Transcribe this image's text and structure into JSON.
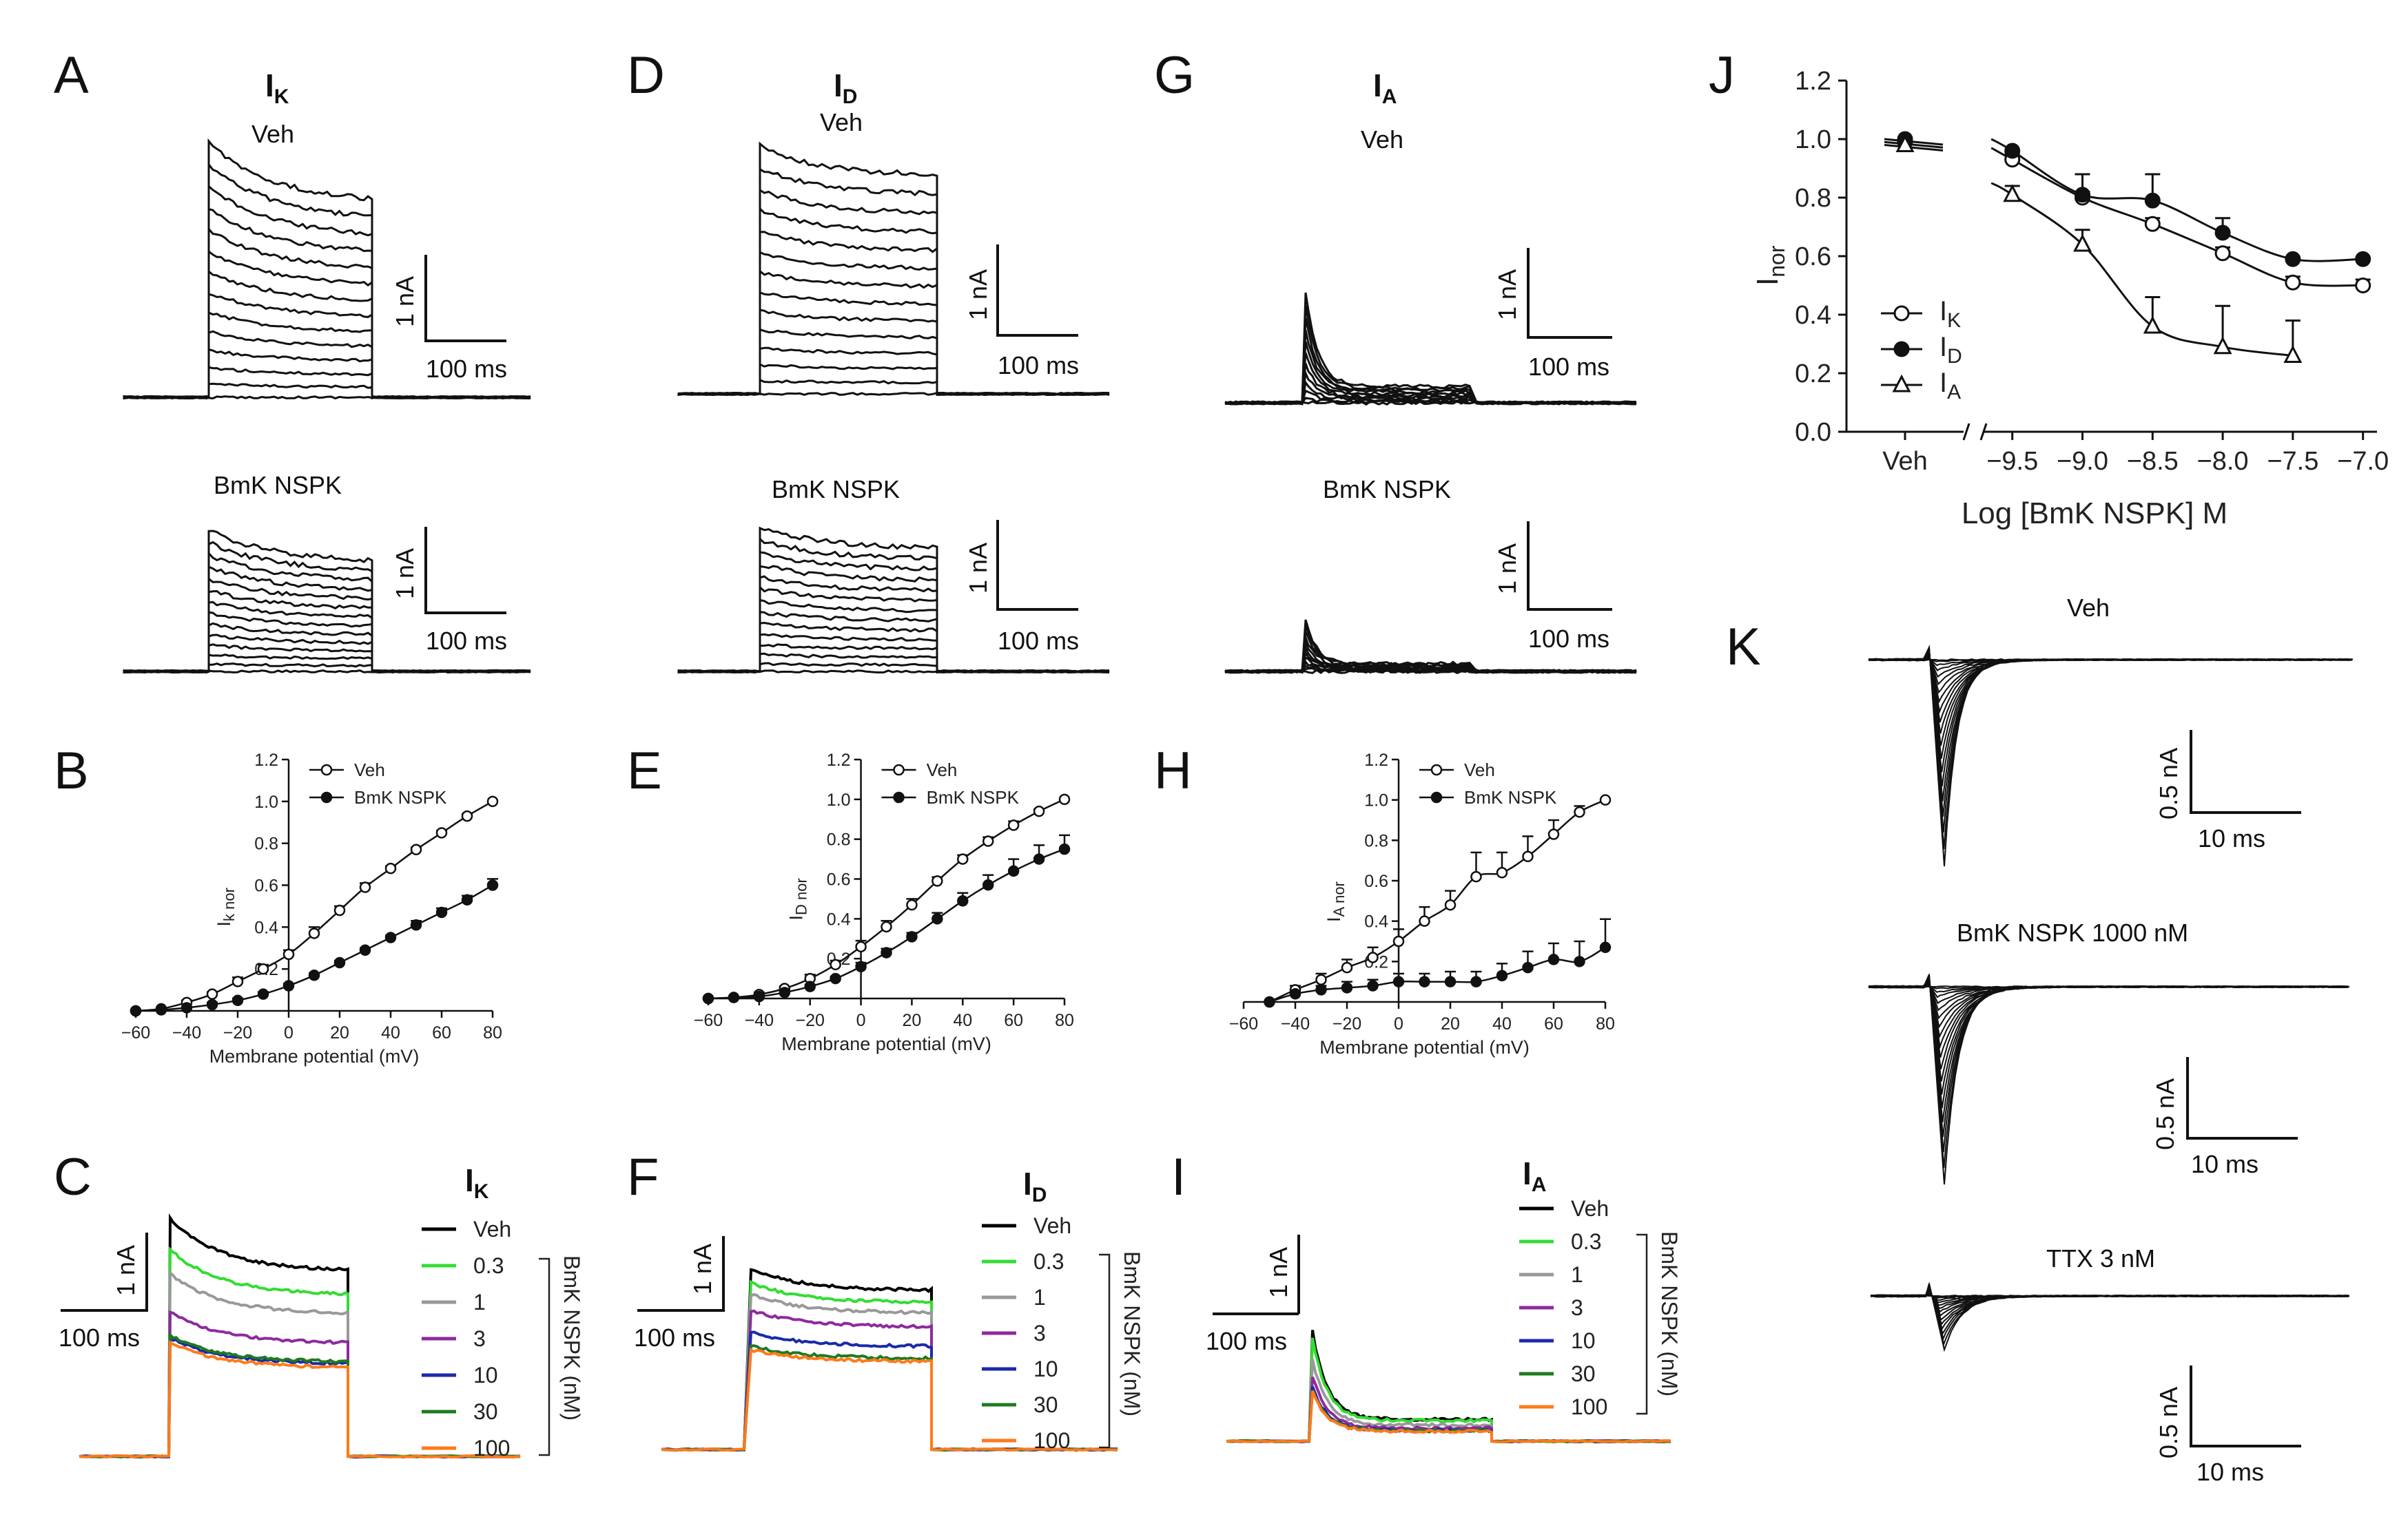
{
  "panels": [
    {
      "id": "A",
      "label": "A"
    },
    {
      "id": "B",
      "label": "B"
    },
    {
      "id": "C",
      "label": "C"
    },
    {
      "id": "D",
      "label": "D"
    },
    {
      "id": "E",
      "label": "E"
    },
    {
      "id": "F",
      "label": "F"
    },
    {
      "id": "G",
      "label": "G"
    },
    {
      "id": "H",
      "label": "H"
    },
    {
      "id": "I",
      "label": "I"
    },
    {
      "id": "J",
      "label": "J"
    },
    {
      "id": "K",
      "label": "K"
    }
  ],
  "titles": {
    "IK": {
      "main": "I",
      "sub": "K"
    },
    "ID": {
      "main": "I",
      "sub": "D"
    },
    "IA": {
      "main": "I",
      "sub": "A"
    }
  },
  "conditions": {
    "veh": "Veh",
    "bmk": "BmK NSPK",
    "bmk1000": "BmK NSPK 1000 nM",
    "ttx": "TTX 3 nM"
  },
  "scalebars": {
    "current_1nA": "1 nA",
    "time_100ms": "100 ms",
    "current_05nA": "0.5 nA",
    "time_10ms": "10 ms"
  },
  "concentration_legend": {
    "group_label": "BmK NSPK (nM)",
    "entries": [
      {
        "label": "Veh",
        "color": "#000000"
      },
      {
        "label": "0.3",
        "color": "#33dd33"
      },
      {
        "label": "1",
        "color": "#999999"
      },
      {
        "label": "3",
        "color": "#8e2a9e"
      },
      {
        "label": "10",
        "color": "#1a2aa8"
      },
      {
        "label": "30",
        "color": "#1f7a1f"
      },
      {
        "label": "100",
        "color": "#ff7a1a"
      }
    ]
  },
  "chart_data": [
    {
      "panel": "B",
      "type": "line",
      "xlabel": "Membrane potential (mV)",
      "ylabel_main": "I",
      "ylabel_sub": "k nor",
      "xlim": [
        -60,
        80
      ],
      "ylim": [
        0,
        1.2
      ],
      "xticks": [
        -60,
        -40,
        -20,
        0,
        20,
        40,
        60,
        80
      ],
      "yticks": [
        0.2,
        0.4,
        0.6,
        0.8,
        1.0,
        1.2
      ],
      "ytick_labels": [
        "0.2",
        "0.4",
        "0.6",
        "0.8",
        "1.0",
        "1.2"
      ],
      "x": [
        -60,
        -50,
        -40,
        -30,
        -20,
        -10,
        0,
        10,
        20,
        30,
        40,
        50,
        60,
        70,
        80
      ],
      "series": [
        {
          "name": "Veh",
          "marker": "open-circle",
          "values": [
            0,
            0.01,
            0.04,
            0.08,
            0.14,
            0.2,
            0.27,
            0.37,
            0.48,
            0.59,
            0.68,
            0.77,
            0.85,
            0.93,
            1.0
          ],
          "errors": [
            0,
            0,
            0.01,
            0.01,
            0.02,
            0.02,
            0.02,
            0.03,
            0.02,
            0.02,
            0.01,
            0.01,
            0.01,
            0.01,
            0
          ]
        },
        {
          "name": "BmK NSPK",
          "marker": "filled-circle",
          "values": [
            0,
            0.005,
            0.015,
            0.03,
            0.05,
            0.08,
            0.12,
            0.17,
            0.23,
            0.29,
            0.35,
            0.41,
            0.47,
            0.53,
            0.6
          ],
          "errors": [
            0,
            0,
            0,
            0.01,
            0.01,
            0.01,
            0.01,
            0.01,
            0.01,
            0.01,
            0.01,
            0.02,
            0.02,
            0.02,
            0.03
          ]
        }
      ]
    },
    {
      "panel": "E",
      "type": "line",
      "xlabel": "Membrane potential (mV)",
      "ylabel_main": "I",
      "ylabel_sub": "D nor",
      "xlim": [
        -60,
        80
      ],
      "ylim": [
        0,
        1.2
      ],
      "xticks": [
        -60,
        -40,
        -20,
        0,
        20,
        40,
        60,
        80
      ],
      "yticks": [
        0.2,
        0.4,
        0.6,
        0.8,
        1.0,
        1.2
      ],
      "ytick_labels": [
        "0.2",
        "0.4",
        "0.6",
        "0.8",
        "1.0",
        "1.2"
      ],
      "x": [
        -60,
        -50,
        -40,
        -30,
        -20,
        -10,
        0,
        10,
        20,
        30,
        40,
        50,
        60,
        70,
        80
      ],
      "series": [
        {
          "name": "Veh",
          "marker": "open-circle",
          "values": [
            0,
            0.005,
            0.02,
            0.05,
            0.1,
            0.17,
            0.26,
            0.36,
            0.47,
            0.59,
            0.7,
            0.79,
            0.87,
            0.94,
            1.0
          ],
          "errors": [
            0,
            0,
            0.01,
            0.01,
            0.02,
            0.02,
            0.03,
            0.03,
            0.03,
            0.02,
            0.02,
            0.02,
            0.02,
            0.01,
            0
          ]
        },
        {
          "name": "BmK NSPK",
          "marker": "filled-circle",
          "values": [
            0,
            0.005,
            0.01,
            0.03,
            0.06,
            0.1,
            0.16,
            0.23,
            0.31,
            0.4,
            0.49,
            0.57,
            0.64,
            0.7,
            0.75
          ],
          "errors": [
            0,
            0,
            0,
            0.01,
            0.01,
            0.01,
            0.02,
            0.02,
            0.02,
            0.03,
            0.04,
            0.05,
            0.06,
            0.07,
            0.07
          ]
        }
      ]
    },
    {
      "panel": "H",
      "type": "line",
      "xlabel": "Membrane potential (mV)",
      "ylabel_main": "I",
      "ylabel_sub": "A nor",
      "xlim": [
        -60,
        80
      ],
      "ylim": [
        0,
        1.2
      ],
      "xticks": [
        -60,
        -40,
        -20,
        0,
        20,
        40,
        60,
        80
      ],
      "yticks": [
        0.2,
        0.4,
        0.6,
        0.8,
        1.0,
        1.2
      ],
      "ytick_labels": [
        "0.2",
        "0.4",
        "0.6",
        "0.8",
        "1.0",
        "1.2"
      ],
      "x": [
        -50,
        -40,
        -30,
        -20,
        -10,
        0,
        10,
        20,
        30,
        40,
        50,
        60,
        70,
        80
      ],
      "series": [
        {
          "name": "Veh",
          "marker": "open-circle",
          "values": [
            0,
            0.06,
            0.11,
            0.17,
            0.22,
            0.3,
            0.4,
            0.48,
            0.62,
            0.64,
            0.72,
            0.83,
            0.94,
            1.0
          ],
          "errors": [
            0,
            0.02,
            0.03,
            0.04,
            0.05,
            0.06,
            0.07,
            0.07,
            0.12,
            0.1,
            0.1,
            0.07,
            0.03,
            0
          ]
        },
        {
          "name": "BmK NSPK",
          "marker": "filled-circle",
          "values": [
            0,
            0.04,
            0.06,
            0.07,
            0.08,
            0.1,
            0.1,
            0.1,
            0.1,
            0.13,
            0.17,
            0.21,
            0.2,
            0.27
          ],
          "errors": [
            0,
            0.01,
            0.02,
            0.03,
            0.03,
            0.04,
            0.04,
            0.05,
            0.05,
            0.06,
            0.08,
            0.08,
            0.1,
            0.14
          ]
        }
      ]
    },
    {
      "panel": "J",
      "type": "scatter",
      "ylabel_main": "I",
      "ylabel_sub": "nor",
      "xlabel": "Log [BmK NSPK] M",
      "ylim": [
        0,
        1.2
      ],
      "yticks": [
        0,
        0.2,
        0.4,
        0.6,
        0.8,
        1.0,
        1.2
      ],
      "ytick_labels": [
        "0.0",
        "0.2",
        "0.4",
        "0.6",
        "0.8",
        "1.0",
        "1.2"
      ],
      "veh_label": "Veh",
      "xlim": [
        -9.7,
        -6.9
      ],
      "xticks": [
        -9.5,
        -9.0,
        -8.5,
        -8.0,
        -7.5,
        -7.0
      ],
      "xtick_labels": [
        "−9.5",
        "−9.0",
        "−8.5",
        "−8.0",
        "−7.5",
        "−7.0"
      ],
      "x": [
        -9.5,
        -9.0,
        -8.5,
        -8.0,
        -7.5,
        -7.0
      ],
      "series": [
        {
          "name": "I",
          "sub": "K",
          "marker": "open-circle",
          "veh": 0.99,
          "values": [
            0.93,
            0.8,
            0.71,
            0.61,
            0.51,
            0.5
          ],
          "errors": [
            0.02,
            0.02,
            0.02,
            0.02,
            0.02,
            0.02
          ]
        },
        {
          "name": "I",
          "sub": "D",
          "marker": "filled-circle",
          "veh": 1.0,
          "values": [
            0.96,
            0.81,
            0.79,
            0.68,
            0.59,
            0.59
          ],
          "errors": [
            0.01,
            0.07,
            0.09,
            0.05,
            0.01,
            0.01
          ]
        },
        {
          "name": "I",
          "sub": "A",
          "marker": "open-triangle",
          "veh": 0.98,
          "values": [
            0.81,
            0.64,
            0.36,
            0.29,
            0.26
          ],
          "x": [
            -9.5,
            -9.0,
            -8.5,
            -8.0,
            -7.5
          ],
          "errors": [
            0.03,
            0.05,
            0.1,
            0.14,
            0.12
          ]
        }
      ]
    }
  ]
}
